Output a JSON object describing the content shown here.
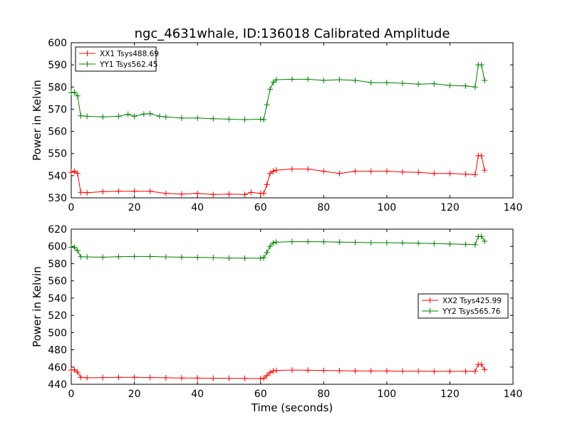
{
  "figure": {
    "title": "ngc_4631whale, ID:136018 Calibrated Amplitude",
    "xlabel": "Time (seconds)"
  },
  "chart_data": [
    {
      "type": "line",
      "ylabel": "Power in Kelvin",
      "xlim": [
        0,
        140
      ],
      "ylim": [
        530,
        600
      ],
      "xticks": [
        0,
        20,
        40,
        60,
        80,
        100,
        120,
        140
      ],
      "yticks": [
        530,
        540,
        550,
        560,
        570,
        580,
        590,
        600
      ],
      "grid": false,
      "legend_position": "top-left",
      "series": [
        {
          "name": "XX1 Tsys488.69",
          "color": "#ff0000",
          "marker": "plus",
          "x": [
            0,
            1,
            2,
            3,
            5,
            10,
            15,
            20,
            25,
            30,
            35,
            40,
            45,
            50,
            55,
            57,
            60,
            61,
            62,
            63,
            64,
            65,
            70,
            75,
            80,
            85,
            90,
            95,
            100,
            105,
            110,
            115,
            120,
            125,
            128,
            129,
            130,
            131
          ],
          "y": [
            541.5,
            542,
            541,
            532.5,
            532.3,
            532.8,
            533,
            533,
            533,
            532,
            531.7,
            532,
            531.5,
            531.7,
            531.5,
            532.5,
            532,
            532,
            536,
            541,
            542,
            542.5,
            543,
            543,
            542,
            541,
            542,
            542,
            542,
            541.7,
            541.5,
            541,
            541,
            540.7,
            540.5,
            549,
            549,
            542.5
          ]
        },
        {
          "name": "YY1 Tsys562.45",
          "color": "#008000",
          "marker": "plus",
          "x": [
            0,
            1,
            2,
            3,
            5,
            10,
            15,
            18,
            20,
            23,
            25,
            28,
            30,
            35,
            40,
            45,
            50,
            55,
            60,
            61,
            62,
            63,
            64,
            65,
            70,
            75,
            80,
            85,
            90,
            95,
            100,
            105,
            110,
            115,
            120,
            125,
            128,
            129,
            130,
            131
          ],
          "y": [
            577.5,
            577.7,
            576,
            567,
            566.8,
            566.5,
            566.8,
            567.7,
            566.8,
            567.8,
            568,
            566.8,
            566.5,
            566,
            566,
            565.7,
            565.5,
            565.3,
            565.5,
            565.3,
            572,
            579,
            582,
            583.3,
            583.5,
            583.5,
            583,
            583.3,
            583,
            582,
            582,
            581.7,
            581.3,
            581.5,
            580.7,
            580.5,
            580,
            590,
            590,
            583
          ]
        }
      ]
    },
    {
      "type": "line",
      "ylabel": "Power in Kelvin",
      "xlim": [
        0,
        140
      ],
      "ylim": [
        440,
        620
      ],
      "xticks": [
        0,
        20,
        40,
        60,
        80,
        100,
        120,
        140
      ],
      "yticks": [
        440,
        460,
        480,
        500,
        520,
        540,
        560,
        580,
        600,
        620
      ],
      "grid": false,
      "legend_position": "center-right",
      "series": [
        {
          "name": "XX2 Tsys425.99",
          "color": "#ff0000",
          "marker": "plus",
          "x": [
            0,
            1,
            2,
            3,
            5,
            10,
            15,
            20,
            25,
            30,
            35,
            40,
            45,
            50,
            55,
            60,
            61,
            62,
            63,
            64,
            65,
            70,
            75,
            80,
            85,
            90,
            95,
            100,
            105,
            110,
            115,
            120,
            125,
            128,
            129,
            130,
            131
          ],
          "y": [
            456.5,
            456.8,
            454,
            448,
            447.5,
            447.8,
            448,
            448,
            447.8,
            447.5,
            447.3,
            447.3,
            447,
            447,
            446.8,
            446.5,
            447,
            450,
            453.5,
            455.5,
            456,
            456.5,
            456.3,
            456,
            455.8,
            455.5,
            455.5,
            455.5,
            455.3,
            455.3,
            455,
            455,
            455,
            455,
            463,
            463,
            457
          ]
        },
        {
          "name": "YY2 Tsys565.76",
          "color": "#008000",
          "marker": "plus",
          "x": [
            0,
            1,
            2,
            3,
            5,
            10,
            15,
            20,
            25,
            30,
            35,
            40,
            45,
            50,
            55,
            60,
            61,
            62,
            63,
            64,
            65,
            70,
            75,
            80,
            85,
            90,
            95,
            100,
            105,
            110,
            115,
            120,
            125,
            128,
            129,
            130,
            131
          ],
          "y": [
            599,
            598.8,
            595,
            588,
            587.8,
            587.5,
            588,
            588.3,
            588.3,
            587.8,
            587.5,
            587.3,
            587,
            586.5,
            586.3,
            586.3,
            587,
            593,
            600,
            604,
            605,
            605.5,
            605.5,
            605.3,
            605,
            604.7,
            604.3,
            604.3,
            604,
            603.7,
            603.3,
            602.8,
            602.3,
            602,
            611.5,
            611.5,
            606
          ]
        }
      ]
    }
  ]
}
